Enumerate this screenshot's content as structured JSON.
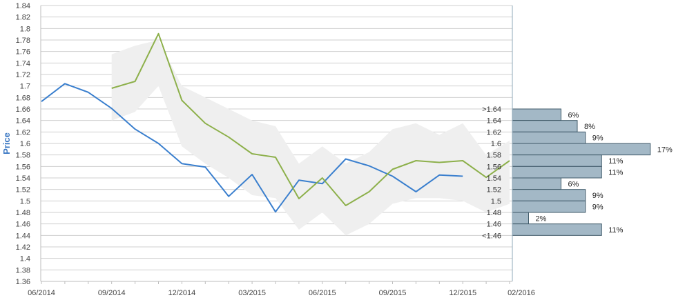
{
  "chart_data": {
    "type": "line",
    "ylabel": "Price",
    "ylim": [
      1.36,
      1.84
    ],
    "y_ticks": [
      "1.36",
      "1.38",
      "1.4",
      "1.42",
      "1.44",
      "1.46",
      "1.48",
      "1.5",
      "1.52",
      "1.54",
      "1.56",
      "1.58",
      "1.6",
      "1.62",
      "1.64",
      "1.66",
      "1.68",
      "1.7",
      "1.72",
      "1.74",
      "1.76",
      "1.78",
      "1.8",
      "1.82",
      "1.84"
    ],
    "x_ticks": [
      "06/2014",
      "09/2014",
      "12/2014",
      "03/2015",
      "06/2015",
      "09/2015",
      "12/2015",
      "02/2016"
    ],
    "grid": true,
    "series": [
      {
        "color": "#3a7fce",
        "x": [
          0,
          1,
          2,
          3,
          4,
          5,
          6,
          7,
          8,
          9,
          10,
          11,
          12,
          13,
          14,
          15,
          16,
          17,
          18
        ],
        "values": [
          1.673,
          1.704,
          1.689,
          1.661,
          1.625,
          1.6,
          1.565,
          1.559,
          1.508,
          1.546,
          1.481,
          1.536,
          1.53,
          1.573,
          1.561,
          1.543,
          1.516,
          1.545,
          1.543
        ]
      },
      {
        "color": "#8db04b",
        "x": [
          3,
          4,
          5,
          6,
          7,
          8,
          9,
          10,
          11,
          12,
          13,
          14,
          15,
          16,
          17,
          18,
          19,
          20
        ],
        "values": [
          1.696,
          1.708,
          1.791,
          1.675,
          1.635,
          1.611,
          1.582,
          1.576,
          1.504,
          1.54,
          1.492,
          1.516,
          1.555,
          1.57,
          1.567,
          1.57,
          1.541,
          1.57
        ]
      }
    ],
    "band": {
      "color": "#efefef",
      "x": [
        3,
        4,
        5,
        6,
        7,
        8,
        9,
        10,
        11,
        12,
        13,
        14,
        15,
        16,
        17,
        18,
        19,
        20
      ],
      "upper": [
        1.755,
        1.77,
        1.78,
        1.7,
        1.68,
        1.66,
        1.64,
        1.63,
        1.565,
        1.595,
        1.565,
        1.585,
        1.625,
        1.635,
        1.615,
        1.635,
        1.58,
        1.605
      ],
      "lower": [
        1.64,
        1.655,
        1.7,
        1.595,
        1.565,
        1.54,
        1.51,
        1.505,
        1.45,
        1.48,
        1.44,
        1.46,
        1.495,
        1.505,
        1.505,
        1.5,
        1.48,
        1.495
      ]
    },
    "histogram": {
      "color": "#a3b8c6",
      "bins": [
        {
          "label": ">1.64",
          "value": 6,
          "pct": "6%"
        },
        {
          "label": "1.64",
          "value": 8,
          "pct": "8%"
        },
        {
          "label": "1.62",
          "value": 9,
          "pct": "9%"
        },
        {
          "label": "1.6",
          "value": 17,
          "pct": "17%"
        },
        {
          "label": "1.58",
          "value": 11,
          "pct": "11%"
        },
        {
          "label": "1.56",
          "value": 11,
          "pct": "11%"
        },
        {
          "label": "1.54",
          "value": 6,
          "pct": "6%"
        },
        {
          "label": "1.52",
          "value": 9,
          "pct": "9%"
        },
        {
          "label": "1.5",
          "value": 9,
          "pct": "9%"
        },
        {
          "label": "1.48",
          "value": 2,
          "pct": "2%"
        },
        {
          "label": "1.46",
          "value": 11,
          "pct": "11%"
        },
        {
          "label": "<1.46",
          "value": null,
          "pct": ""
        }
      ]
    }
  }
}
